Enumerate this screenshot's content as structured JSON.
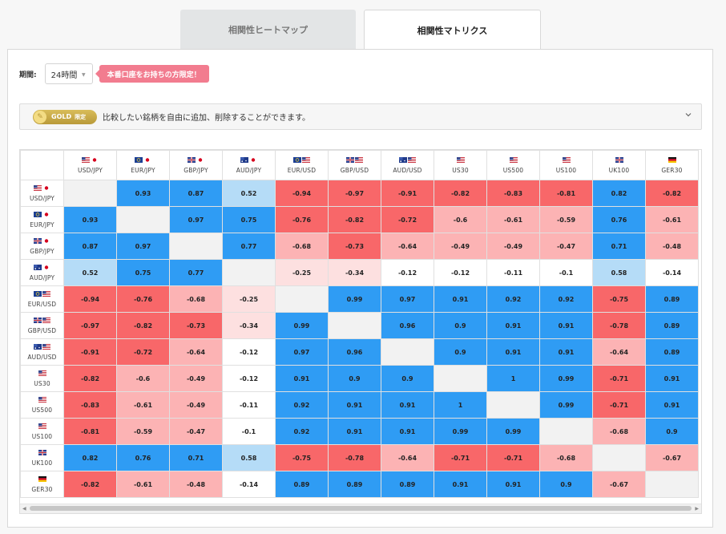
{
  "tabs": {
    "heatmap": "相関性ヒートマップ",
    "matrix": "相関性マトリクス"
  },
  "period": {
    "label": "期間:",
    "value": "24時間"
  },
  "notice_pill": "本番口座をお持ちの方限定！",
  "gold": {
    "badge": "GOLD",
    "limited": "限定",
    "text": "比較したい銘柄を自由に追加、削除することができます。"
  },
  "colors": {
    "strong_positive": "#2f9cf4",
    "weak_positive": "#b5dcf7",
    "strong_negative": "#f86769",
    "mid_negative": "#fcb3b4",
    "weak_negative": "#fde0e0",
    "diagonal": "#f2f2f2",
    "neutral": "#ffffff"
  },
  "symbols": [
    "USD/JPY",
    "EUR/JPY",
    "GBP/JPY",
    "AUD/JPY",
    "EUR/USD",
    "GBP/USD",
    "AUD/USD",
    "US30",
    "US500",
    "US100",
    "UK100",
    "GER30"
  ],
  "symbol_flags": [
    [
      "us",
      "jp"
    ],
    [
      "eu",
      "jp"
    ],
    [
      "gb",
      "jp"
    ],
    [
      "au",
      "jp"
    ],
    [
      "eu",
      "us"
    ],
    [
      "gb",
      "us"
    ],
    [
      "au",
      "us"
    ],
    [
      "us"
    ],
    [
      "us"
    ],
    [
      "us"
    ],
    [
      "gb"
    ],
    [
      "de"
    ]
  ],
  "matrix": [
    [
      null,
      0.93,
      0.87,
      0.52,
      -0.94,
      -0.97,
      -0.91,
      -0.82,
      -0.83,
      -0.81,
      0.82,
      -0.82
    ],
    [
      0.93,
      null,
      0.97,
      0.75,
      -0.76,
      -0.82,
      -0.72,
      -0.6,
      -0.61,
      -0.59,
      0.76,
      -0.61
    ],
    [
      0.87,
      0.97,
      null,
      0.77,
      -0.68,
      -0.73,
      -0.64,
      -0.49,
      -0.49,
      -0.47,
      0.71,
      -0.48
    ],
    [
      0.52,
      0.75,
      0.77,
      null,
      -0.25,
      -0.34,
      -0.12,
      -0.12,
      -0.11,
      -0.1,
      0.58,
      -0.14
    ],
    [
      -0.94,
      -0.76,
      -0.68,
      -0.25,
      null,
      0.99,
      0.97,
      0.91,
      0.92,
      0.92,
      -0.75,
      0.89
    ],
    [
      -0.97,
      -0.82,
      -0.73,
      -0.34,
      0.99,
      null,
      0.96,
      0.9,
      0.91,
      0.91,
      -0.78,
      0.89
    ],
    [
      -0.91,
      -0.72,
      -0.64,
      -0.12,
      0.97,
      0.96,
      null,
      0.9,
      0.91,
      0.91,
      -0.64,
      0.89
    ],
    [
      -0.82,
      -0.6,
      -0.49,
      -0.12,
      0.91,
      0.9,
      0.9,
      null,
      1,
      0.99,
      -0.71,
      0.91
    ],
    [
      -0.83,
      -0.61,
      -0.49,
      -0.11,
      0.92,
      0.91,
      0.91,
      1,
      null,
      0.99,
      -0.71,
      0.91
    ],
    [
      -0.81,
      -0.59,
      -0.47,
      -0.1,
      0.92,
      0.91,
      0.91,
      0.99,
      0.99,
      null,
      -0.68,
      0.9
    ],
    [
      0.82,
      0.76,
      0.71,
      0.58,
      -0.75,
      -0.78,
      -0.64,
      -0.71,
      -0.71,
      -0.68,
      null,
      -0.67
    ],
    [
      -0.82,
      -0.61,
      -0.48,
      -0.14,
      0.89,
      0.89,
      0.89,
      0.91,
      0.91,
      0.9,
      -0.67,
      null
    ]
  ]
}
